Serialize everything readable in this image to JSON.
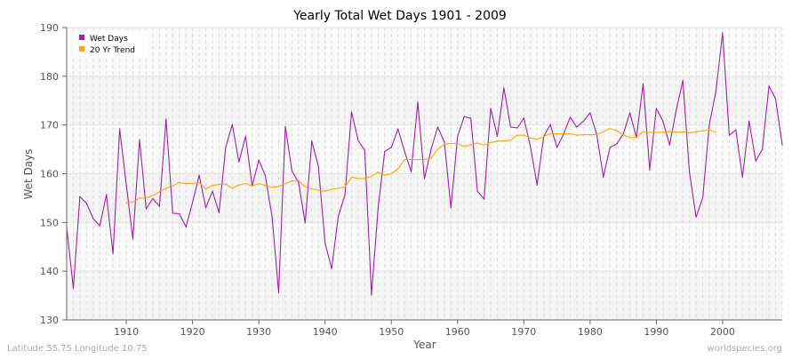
{
  "chart_data": {
    "type": "line",
    "title": "Yearly Total Wet Days 1901 - 2009",
    "xlabel": "Year",
    "ylabel": "Wet Days",
    "xlim": [
      1901,
      2009
    ],
    "ylim": [
      130,
      190
    ],
    "x_ticks": [
      1910,
      1920,
      1930,
      1940,
      1950,
      1960,
      1970,
      1980,
      1990,
      2000
    ],
    "y_ticks": [
      130,
      140,
      150,
      160,
      170,
      180,
      190
    ],
    "grid": true,
    "legend_position": "top-left",
    "series": [
      {
        "name": "Wet Days",
        "color": "#a020a8",
        "x_start": 1901,
        "values": [
          149.1,
          136.5,
          155.3,
          153.9,
          150.8,
          149.3,
          155.7,
          143.6,
          169.2,
          157.7,
          146.6,
          167.0,
          152.8,
          154.9,
          153.3,
          171.2,
          151.9,
          151.8,
          149.1,
          154.1,
          159.7,
          153.0,
          156.4,
          152.0,
          165.4,
          170.1,
          162.4,
          167.7,
          157.5,
          162.8,
          159.5,
          151.1,
          135.6,
          169.7,
          160.6,
          158.2,
          149.9,
          166.7,
          161.5,
          145.8,
          140.5,
          151.3,
          155.7,
          172.7,
          166.8,
          164.8,
          135.1,
          152.8,
          164.6,
          165.4,
          169.2,
          164.6,
          160.4,
          174.7,
          159.0,
          165.0,
          169.6,
          166.5,
          153.0,
          167.7,
          171.7,
          171.4,
          156.4,
          154.8,
          173.4,
          167.7,
          177.6,
          169.6,
          169.4,
          171.4,
          165.5,
          157.7,
          167.6,
          170.1,
          165.4,
          168.1,
          171.6,
          169.6,
          170.8,
          172.5,
          168.1,
          159.3,
          165.4,
          166.1,
          168.1,
          172.5,
          167.4,
          178.5,
          160.8,
          173.4,
          170.8,
          165.9,
          173.0,
          179.1,
          160.4,
          151.1,
          155.1,
          170.1,
          177.0,
          188.9,
          167.9,
          169.0,
          159.3,
          170.8,
          162.6,
          165.0,
          178.0,
          175.4,
          165.9
        ]
      },
      {
        "name": "20 Yr Trend",
        "color": "#ffa500",
        "x_start": 1910,
        "values": [
          154.0,
          154.2,
          155.0,
          155.0,
          155.5,
          156.3,
          157.0,
          157.5,
          158.2,
          158.0,
          158.0,
          158.2,
          156.9,
          157.6,
          157.8,
          157.9,
          157.0,
          157.7,
          158.0,
          157.5,
          158.0,
          157.6,
          157.2,
          157.4,
          158.0,
          158.5,
          158.6,
          157.3,
          156.9,
          156.6,
          156.4,
          156.8,
          157.0,
          157.3,
          159.3,
          159.0,
          159.0,
          159.5,
          160.3,
          159.7,
          160.0,
          161.0,
          162.9,
          162.9,
          162.9,
          162.9,
          163.2,
          165.0,
          166.0,
          166.2,
          166.2,
          165.6,
          165.9,
          166.3,
          165.9,
          166.4,
          166.7,
          166.7,
          166.9,
          167.9,
          167.9,
          167.3,
          167.1,
          167.6,
          168.2,
          168.2,
          168.2,
          168.2,
          167.9,
          168.0,
          168.0,
          168.0,
          168.6,
          169.3,
          168.8,
          168.0,
          167.4,
          167.5,
          168.6,
          168.5,
          168.5,
          168.5,
          168.7,
          168.5,
          168.6,
          168.4,
          168.6,
          168.8,
          169.0,
          168.5
        ]
      }
    ]
  },
  "footer": {
    "location": "Latitude 55.75 Longitude 10.75",
    "source": "worldspecies.org"
  }
}
